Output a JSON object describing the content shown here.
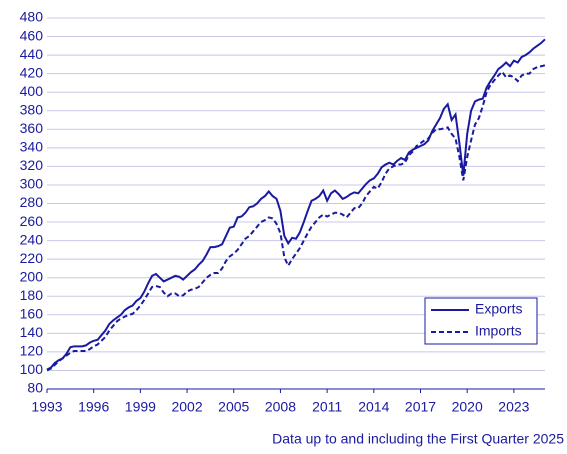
{
  "chart_data": {
    "type": "line",
    "note": "Data up to and including the First Quarter 2025",
    "x": [
      1993,
      1993.25,
      1993.5,
      1993.75,
      1994,
      1994.25,
      1994.5,
      1994.75,
      1995,
      1995.25,
      1995.5,
      1995.75,
      1996,
      1996.25,
      1996.5,
      1996.75,
      1997,
      1997.25,
      1997.5,
      1997.75,
      1998,
      1998.25,
      1998.5,
      1998.75,
      1999,
      1999.25,
      1999.5,
      1999.75,
      2000,
      2000.25,
      2000.5,
      2000.75,
      2001,
      2001.25,
      2001.5,
      2001.75,
      2002,
      2002.25,
      2002.5,
      2002.75,
      2003,
      2003.25,
      2003.5,
      2003.75,
      2004,
      2004.25,
      2004.5,
      2004.75,
      2005,
      2005.25,
      2005.5,
      2005.75,
      2006,
      2006.25,
      2006.5,
      2006.75,
      2007,
      2007.25,
      2007.5,
      2007.75,
      2008,
      2008.25,
      2008.5,
      2008.75,
      2009,
      2009.25,
      2009.5,
      2009.75,
      2010,
      2010.25,
      2010.5,
      2010.75,
      2011,
      2011.25,
      2011.5,
      2011.75,
      2012,
      2012.25,
      2012.5,
      2012.75,
      2013,
      2013.25,
      2013.5,
      2013.75,
      2014,
      2014.25,
      2014.5,
      2014.75,
      2015,
      2015.25,
      2015.5,
      2015.75,
      2016,
      2016.25,
      2016.5,
      2016.75,
      2017,
      2017.25,
      2017.5,
      2017.75,
      2018,
      2018.25,
      2018.5,
      2018.75,
      2019,
      2019.25,
      2019.5,
      2019.75,
      2020,
      2020.25,
      2020.5,
      2020.75,
      2021,
      2021.25,
      2021.5,
      2021.75,
      2022,
      2022.25,
      2022.5,
      2022.75,
      2023,
      2023.25,
      2023.5,
      2023.75,
      2024,
      2024.25,
      2024.5,
      2024.75,
      2025
    ],
    "series": [
      {
        "name": "Exports",
        "color": "#1a1aa0",
        "linestyle": "solid",
        "values": [
          101,
          103,
          108,
          111,
          113,
          118,
          125,
          126,
          126,
          126,
          127,
          130,
          132,
          133,
          138,
          143,
          150,
          154,
          157,
          160,
          165,
          168,
          170,
          175,
          178,
          185,
          194,
          202,
          204,
          200,
          196,
          198,
          200,
          202,
          201,
          198,
          202,
          206,
          209,
          214,
          218,
          225,
          233,
          233,
          234,
          236,
          245,
          254,
          255,
          265,
          266,
          270,
          276,
          277,
          280,
          285,
          288,
          293,
          288,
          285,
          272,
          245,
          237,
          243,
          242,
          249,
          260,
          272,
          283,
          285,
          288,
          294,
          283,
          291,
          294,
          290,
          285,
          287,
          290,
          292,
          291,
          296,
          301,
          305,
          307,
          312,
          319,
          322,
          324,
          322,
          326,
          329,
          327,
          335,
          338,
          340,
          342,
          344,
          348,
          358,
          365,
          372,
          382,
          387,
          370,
          376,
          345,
          310,
          355,
          380,
          390,
          392,
          393,
          405,
          412,
          418,
          425,
          428,
          432,
          428,
          434,
          432,
          438,
          440,
          443,
          447,
          450,
          453,
          457
        ]
      },
      {
        "name": "Imports",
        "color": "#1a1aa0",
        "linestyle": "dashed",
        "values": [
          100,
          102,
          106,
          110,
          113,
          116,
          119,
          121,
          121,
          121,
          121,
          123,
          126,
          128,
          132,
          136,
          143,
          148,
          153,
          156,
          158,
          160,
          161,
          165,
          170,
          176,
          183,
          190,
          191,
          190,
          184,
          180,
          183,
          183,
          180,
          181,
          185,
          187,
          188,
          190,
          195,
          200,
          203,
          205,
          205,
          210,
          218,
          223,
          226,
          230,
          236,
          242,
          245,
          250,
          255,
          260,
          262,
          265,
          264,
          258,
          248,
          222,
          213,
          220,
          226,
          232,
          240,
          248,
          255,
          260,
          265,
          268,
          266,
          268,
          270,
          270,
          268,
          265,
          270,
          275,
          275,
          280,
          288,
          293,
          298,
          296,
          303,
          312,
          318,
          320,
          322,
          322,
          324,
          332,
          336,
          342,
          345,
          348,
          350,
          356,
          360,
          360,
          361,
          362,
          355,
          350,
          330,
          305,
          330,
          348,
          365,
          372,
          385,
          400,
          408,
          413,
          418,
          422,
          416,
          418,
          416,
          412,
          418,
          420,
          420,
          425,
          427,
          428,
          429
        ]
      }
    ],
    "xlim": [
      1993,
      2025
    ],
    "xticks": [
      1993,
      1996,
      1999,
      2002,
      2005,
      2008,
      2011,
      2014,
      2017,
      2020,
      2023
    ],
    "ylim": [
      80,
      480
    ],
    "yticks": [
      80,
      100,
      120,
      140,
      160,
      180,
      200,
      220,
      240,
      260,
      280,
      300,
      320,
      340,
      360,
      380,
      400,
      420,
      440,
      460,
      480
    ],
    "grid": true,
    "legend": "lower right"
  }
}
